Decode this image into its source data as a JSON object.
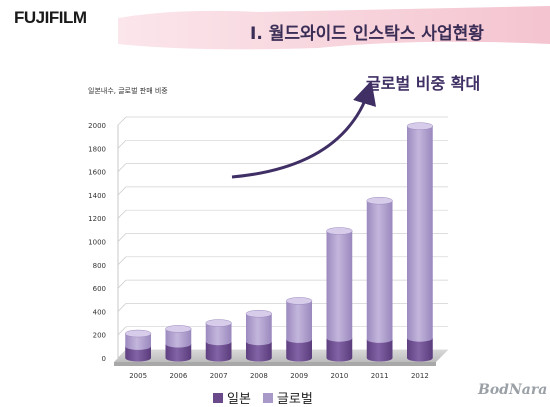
{
  "brand": {
    "logo_text": "FUJIFILM"
  },
  "header": {
    "title": "I. 월드와이드 인스탁스 사업현황"
  },
  "callout": {
    "text": "글로벌 비중 확대"
  },
  "watermark": {
    "text": "BodNara"
  },
  "colors": {
    "japan": "#6b4a8c",
    "global": "#a999c8",
    "global_light": "#c9bde0",
    "banner": "#f7d3dc",
    "accent_red": "#c0143c",
    "arrow": "#3f2f64"
  },
  "chart_data": {
    "type": "bar",
    "subtitle": "일본내수, 글로벌 판매 비중",
    "categories": [
      "2005",
      "2006",
      "2007",
      "2008",
      "2009",
      "2010",
      "2011",
      "2012"
    ],
    "series": [
      {
        "name": "일본",
        "values": [
          100,
          120,
          140,
          140,
          160,
          170,
          160,
          170
        ]
      },
      {
        "name": "글로벌",
        "values": [
          110,
          130,
          160,
          240,
          330,
          920,
          1190,
          1820
        ]
      }
    ],
    "stacked": true,
    "ylim": [
      0,
      2000
    ],
    "yticks": [
      "0",
      "200",
      "400",
      "600",
      "800",
      "1000",
      "1200",
      "1400",
      "1600",
      "1800",
      "2000"
    ],
    "grid": true,
    "legend": "bottom"
  }
}
